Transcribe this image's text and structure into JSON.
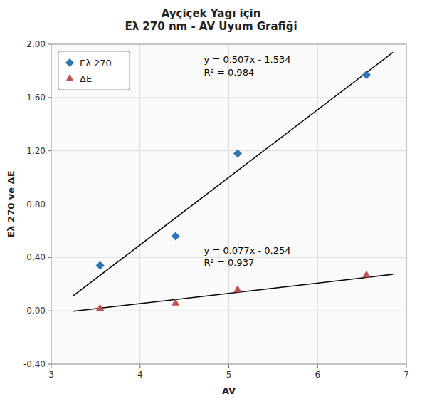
{
  "chart_data": {
    "type": "scatter",
    "title": "Ayçiçek Yağı için\nEλ 270 nm - AV Uyum Grafiği",
    "x_label": "AV",
    "y_label": "Eλ 270 ve ΔE",
    "xlim": [
      3,
      7
    ],
    "ylim": [
      -0.4,
      2.0
    ],
    "xticks": [
      3,
      4,
      5,
      6,
      7
    ],
    "yticks": [
      {
        "value": -0.4,
        "label": "-0.40"
      },
      {
        "value": 0,
        "label": "0.00"
      },
      {
        "value": 0.4,
        "label": "0.40"
      },
      {
        "value": 0.8,
        "label": "0.80"
      },
      {
        "value": 1.2,
        "label": "1.20"
      },
      {
        "value": 1.6,
        "label": "1.60"
      },
      {
        "value": 2.0,
        "label": "2.00"
      }
    ],
    "grid": true,
    "legend": "upper left",
    "series": [
      {
        "name": "Eλ 270",
        "type": "scatter",
        "marker": "diamond",
        "color": "#2F75B6",
        "x": [
          3.55,
          4.4,
          5.1,
          6.55
        ],
        "values": [
          0.34,
          0.56,
          1.18,
          1.77
        ]
      },
      {
        "name": "ΔE",
        "type": "scatter",
        "marker": "triangle",
        "color": "#C0504D",
        "x": [
          3.55,
          4.4,
          5.1,
          6.55
        ],
        "values": [
          0.02,
          0.06,
          0.16,
          0.27
        ]
      },
      {
        "type": "line",
        "line_style": "solid",
        "color": "#000000",
        "x": [
          3.25,
          6.85
        ],
        "values": [
          0.11375,
          1.93895
        ]
      },
      {
        "type": "line",
        "line_style": "solid",
        "color": "#000000",
        "x": [
          3.25,
          6.85
        ],
        "values": [
          -0.00375,
          0.27345
        ]
      }
    ],
    "annotations": [
      {
        "text": "y = 0.507x - 1.534\nR² = 0.984",
        "x": 4.72,
        "y": 1.93
      },
      {
        "text": "y = 0.077x - 0.254\nR² = 0.937",
        "x": 4.72,
        "y": 0.5
      }
    ]
  }
}
